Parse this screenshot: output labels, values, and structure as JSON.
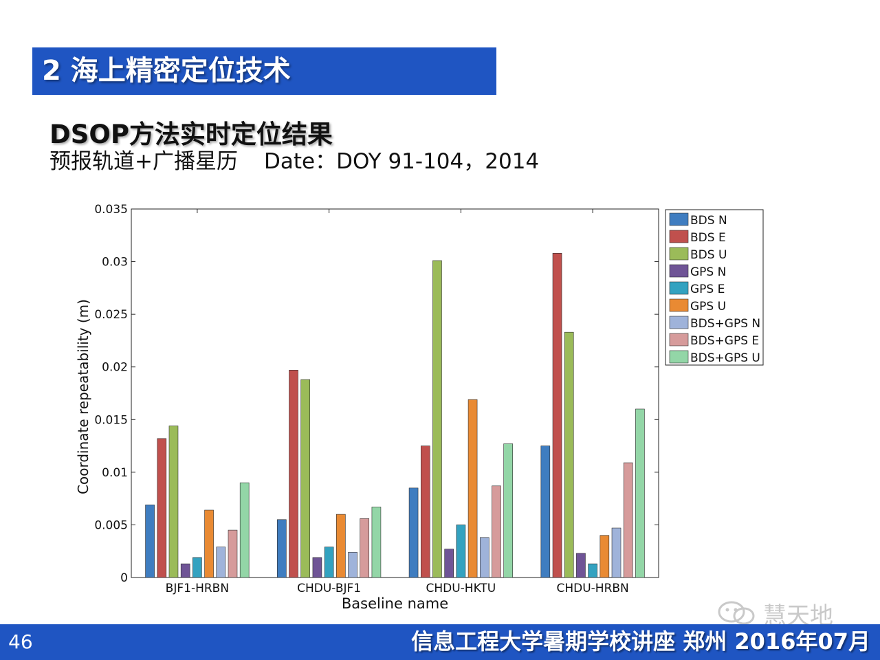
{
  "slide": {
    "section_title": "2 海上精密定位技术",
    "subtitle": "DSOP方法实时定位结果",
    "subline_left": "预报轨道+广播星历",
    "subline_date": "Date：DOY 91-104，2014",
    "page_number": "46",
    "footer_text": "信息工程大学暑期学校讲座  郑州  2016年07月",
    "watermark_text": "慧天地",
    "watermark_icon": "wechat-icon"
  },
  "colors": {
    "title_bar": "#1f55c2",
    "footer_bar": "#1f55c2"
  },
  "chart_data": {
    "type": "bar",
    "xlabel": "Baseline name",
    "ylabel": "Coordinate repeatability (m)",
    "ylim": [
      0,
      0.035
    ],
    "yticks": [
      "0",
      "0.005",
      "0.01",
      "0.015",
      "0.02",
      "0.025",
      "0.03",
      "0.035"
    ],
    "categories": [
      "BJF1-HRBN",
      "CHDU-BJF1",
      "CHDU-HKTU",
      "CHDU-HRBN"
    ],
    "legend_position": "outside-right",
    "grid": false,
    "series": [
      {
        "name": "BDS N",
        "color": "#3f7dc0",
        "values": [
          0.0069,
          0.0055,
          0.0085,
          0.0125
        ]
      },
      {
        "name": "BDS E",
        "color": "#c0504d",
        "values": [
          0.0132,
          0.0197,
          0.0125,
          0.0308
        ]
      },
      {
        "name": "BDS U",
        "color": "#9bbb59",
        "values": [
          0.0144,
          0.0188,
          0.0301,
          0.0233
        ]
      },
      {
        "name": "GPS N",
        "color": "#6f5496",
        "values": [
          0.0013,
          0.0019,
          0.0027,
          0.0023
        ]
      },
      {
        "name": "GPS E",
        "color": "#33a2c0",
        "values": [
          0.0019,
          0.0029,
          0.005,
          0.0013
        ]
      },
      {
        "name": "GPS U",
        "color": "#e98a33",
        "values": [
          0.0064,
          0.006,
          0.0169,
          0.004
        ]
      },
      {
        "name": "BDS+GPS N",
        "color": "#9fb3da",
        "values": [
          0.0029,
          0.0024,
          0.0038,
          0.0047
        ]
      },
      {
        "name": "BDS+GPS E",
        "color": "#d69b9b",
        "values": [
          0.0045,
          0.0056,
          0.0087,
          0.0109
        ]
      },
      {
        "name": "BDS+GPS U",
        "color": "#93d6a7",
        "values": [
          0.009,
          0.0067,
          0.0127,
          0.016
        ]
      }
    ]
  }
}
